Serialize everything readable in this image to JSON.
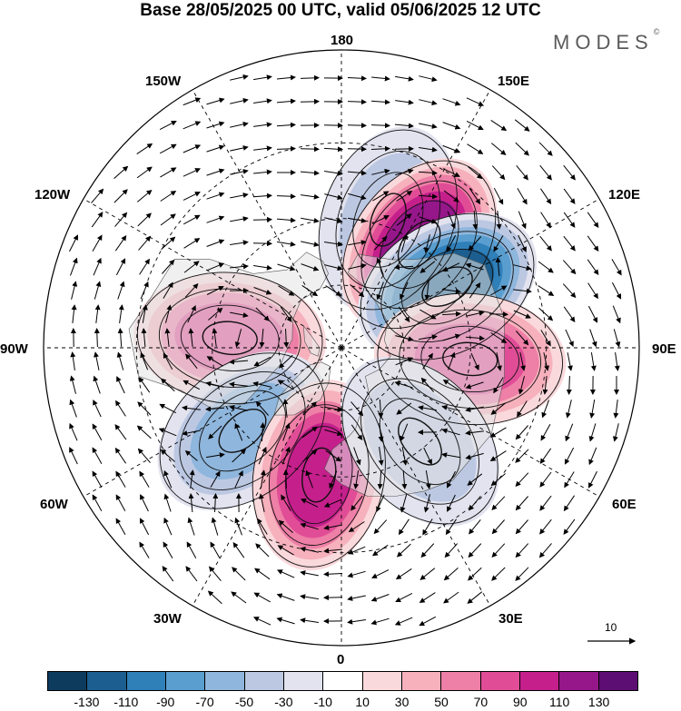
{
  "header": {
    "title": "Base 28/05/2025 00 UTC, valid 05/06/2025 12 UTC",
    "brand": "MODES",
    "brand_mark": "©"
  },
  "map": {
    "longitude_labels": [
      "180",
      "150E",
      "120E",
      "90E",
      "60E",
      "30E",
      "0",
      "30W",
      "60W",
      "90W",
      "120W",
      "150W"
    ],
    "projection": "north-polar-stereographic",
    "field_colors": {
      "land_fill": "#e4e4e4",
      "coast_line": "#555555",
      "grid_line": "#000000"
    },
    "anomaly_centers": [
      {
        "sign": "negative",
        "lon": 160,
        "lat": 48,
        "level": -40
      },
      {
        "sign": "positive",
        "lon": 143,
        "lat": 50,
        "level": 115
      },
      {
        "sign": "negative",
        "lon": 120,
        "lat": 52,
        "level": -110
      },
      {
        "sign": "positive",
        "lon": 85,
        "lat": 50,
        "level": 80
      },
      {
        "sign": "positive",
        "lon": -95,
        "lat": 55,
        "level": 70
      },
      {
        "sign": "negative",
        "lon": -50,
        "lat": 50,
        "level": -60
      },
      {
        "sign": "positive",
        "lon": -10,
        "lat": 50,
        "level": 90
      },
      {
        "sign": "negative",
        "lon": 40,
        "lat": 52,
        "level": -30
      }
    ]
  },
  "wind_legend": {
    "label": "10"
  },
  "colorbar": {
    "colors": [
      "#0d3b5e",
      "#1b5e8f",
      "#2f7fb9",
      "#5a9ecf",
      "#8fb6dc",
      "#bcc8e2",
      "#e2e3ef",
      "#ffffff",
      "#fad9dc",
      "#f6b1bd",
      "#ee7fa6",
      "#e04d96",
      "#c51f8c",
      "#95178a",
      "#5d0e73"
    ],
    "tick_labels": [
      "-130",
      "-110",
      "-90",
      "-70",
      "-50",
      "-30",
      "-10",
      "10",
      "30",
      "50",
      "70",
      "90",
      "110",
      "130"
    ]
  }
}
